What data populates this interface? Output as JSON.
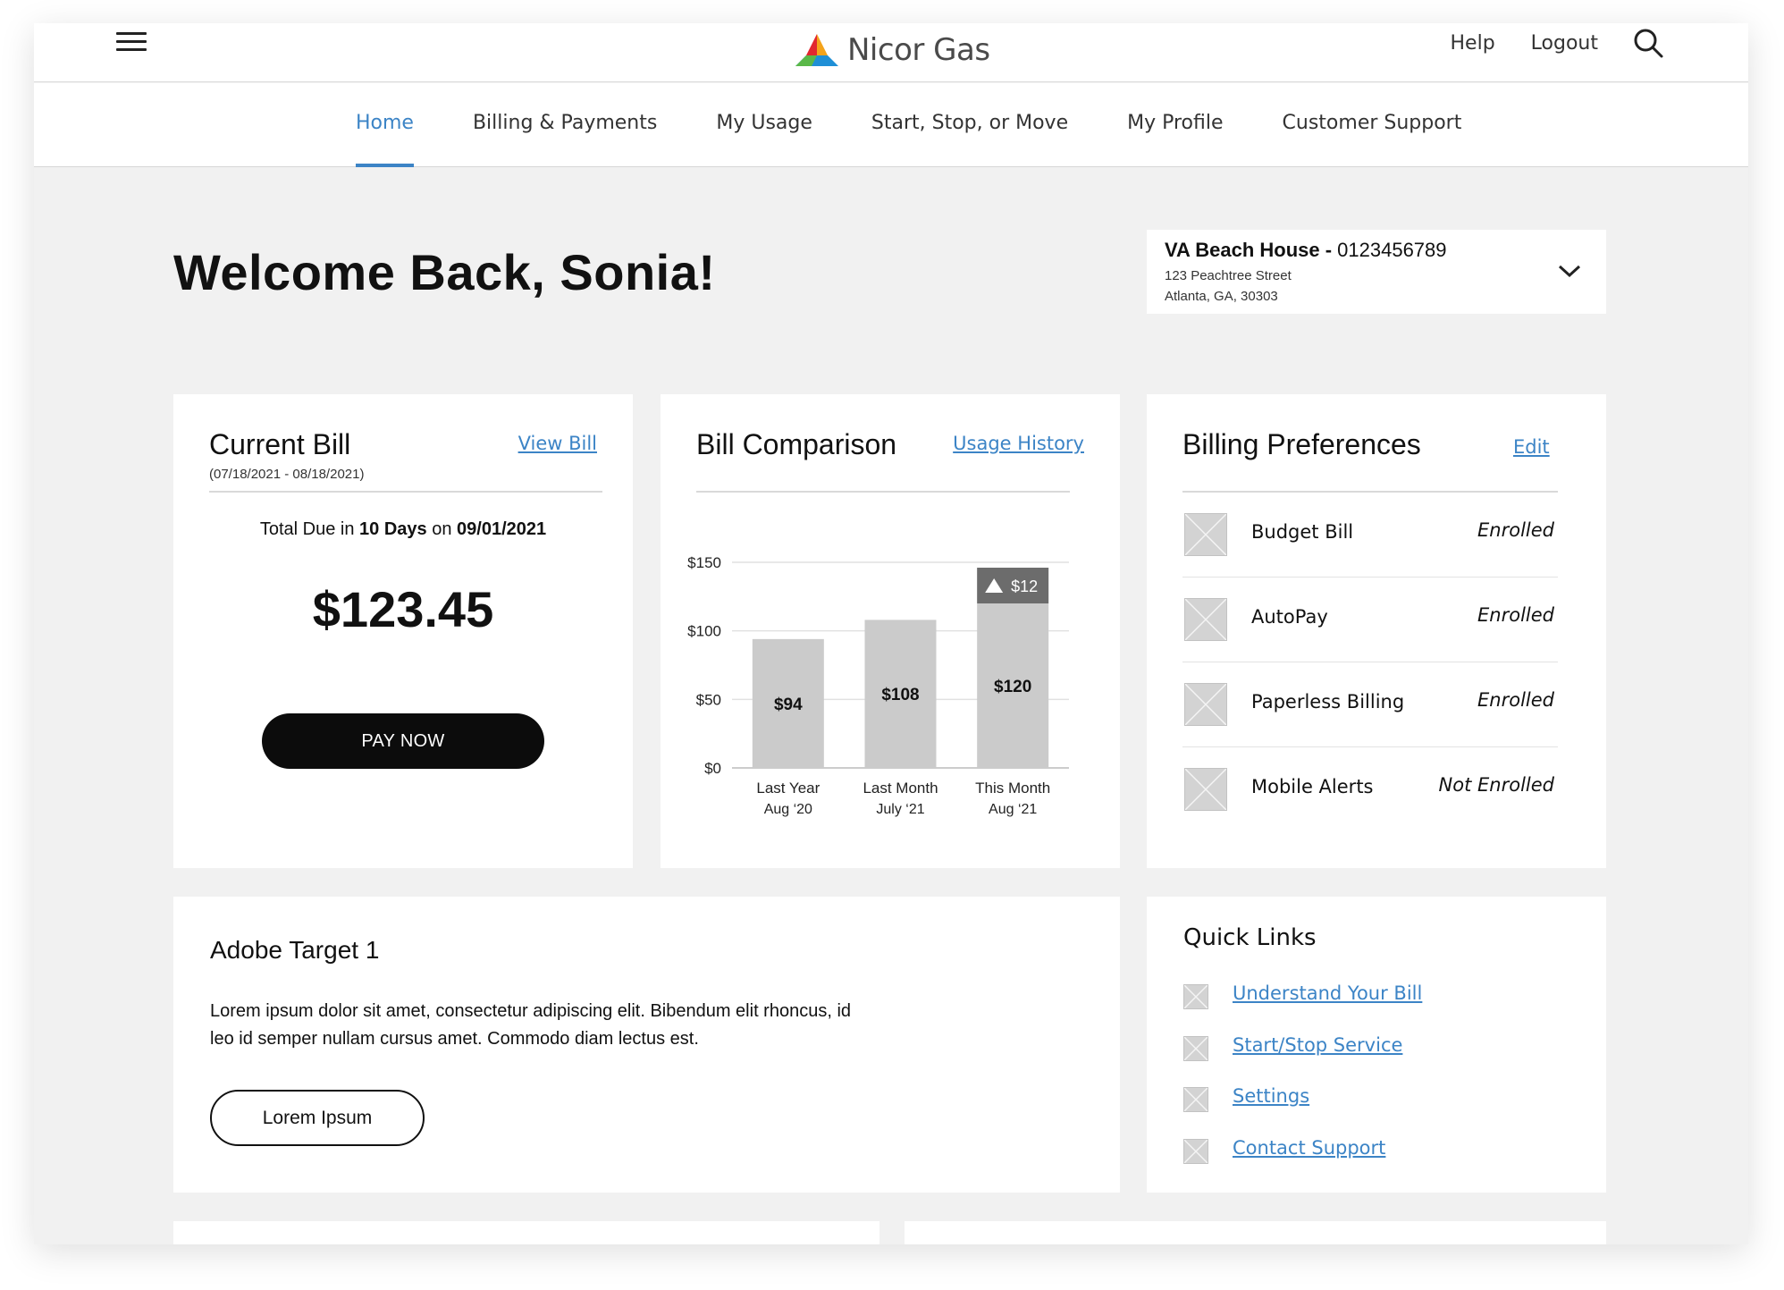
{
  "header": {
    "brand": "Nicor Gas",
    "links": [
      "Help",
      "Logout"
    ]
  },
  "nav": {
    "items": [
      "Home",
      "Billing & Payments",
      "My Usage",
      "Start, Stop, or Move",
      "My Profile",
      "Customer Support"
    ],
    "active": "Home"
  },
  "welcome": "Welcome Back, Sonia!",
  "account": {
    "name": "VA Beach House - ",
    "number": "0123456789",
    "street": "123 Peachtree Street",
    "city": "Atlanta, GA, 30303"
  },
  "current_bill": {
    "title": "Current Bill",
    "view_bill": "View Bill",
    "period": "(07/18/2021 - 08/18/2021)",
    "due_prefix": "Total Due in ",
    "due_days": "10 Days",
    "due_mid": " on ",
    "due_date": "09/01/2021",
    "amount": "$123.45",
    "pay_now": "PAY NOW"
  },
  "bill_comparison": {
    "title": "Bill Comparison",
    "usage_history": "Usage History"
  },
  "chart_data": {
    "type": "bar",
    "title": "",
    "xlabel": "",
    "ylabel": "",
    "categories": [
      [
        "Last Year",
        "Aug ‘20"
      ],
      [
        "Last Month",
        "July ‘21"
      ],
      [
        "This Month",
        "Aug ‘21"
      ]
    ],
    "values": [
      94,
      108,
      120
    ],
    "data_labels": [
      "$94",
      "$108",
      "$120"
    ],
    "increase": {
      "value": 12,
      "label": "$12",
      "indicator": "up-triangle-icon"
    },
    "ylim": [
      0,
      150
    ],
    "yticks": [
      0,
      50,
      100,
      150
    ],
    "ytick_labels": [
      "$0",
      "$50",
      "$100",
      "$150"
    ],
    "grid": true,
    "bar_color": "#cbcbcb",
    "increase_color": "#6c6c6c"
  },
  "billing_preferences": {
    "title": "Billing Preferences",
    "edit": "Edit",
    "items": [
      {
        "label": "Budget Bill",
        "status": "Enrolled"
      },
      {
        "label": "AutoPay",
        "status": "Enrolled"
      },
      {
        "label": "Paperless Billing",
        "status": "Enrolled"
      },
      {
        "label": "Mobile Alerts",
        "status": "Not Enrolled"
      }
    ]
  },
  "promo": {
    "title": "Adobe Target 1",
    "body": "Lorem ipsum dolor sit amet, consectetur adipiscing elit. Bibendum elit rhoncus, id leo id semper nullam cursus amet. Commodo diam lectus est.",
    "button": "Lorem Ipsum"
  },
  "quick_links": {
    "title": "Quick Links",
    "items": [
      "Understand Your Bill",
      "Start/Stop Service",
      "Settings",
      "Contact Support"
    ]
  },
  "colors": {
    "accent": "#3c84c6",
    "background": "#f1f1f1",
    "button": "#0c0c0c"
  }
}
